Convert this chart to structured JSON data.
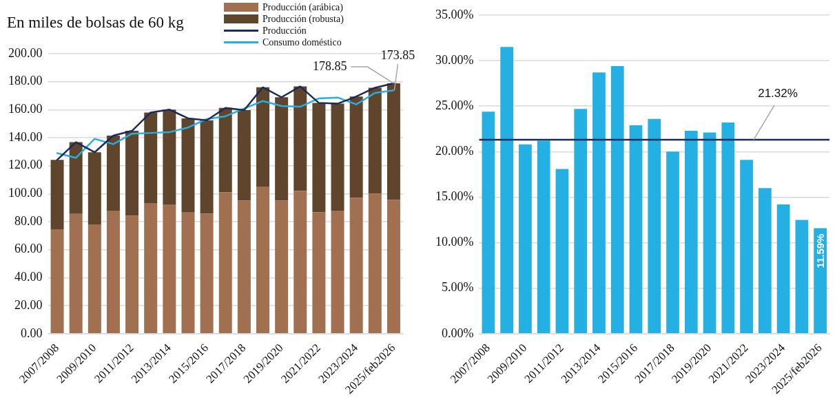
{
  "chart_data": [
    {
      "type": "bar",
      "title": "En miles de bolsas de 60 kg",
      "stacked": true,
      "grid": "y",
      "legend": "top",
      "marker": "none",
      "line_style": "solid",
      "categories": [
        "2007/2008",
        null,
        "2009/2010",
        null,
        "2011/2012",
        null,
        "2013/2014",
        null,
        "2015/2016",
        null,
        "2017/2018",
        null,
        "2019/2020",
        null,
        "2021/2022",
        null,
        "2023/2024",
        null,
        "2025/feb2026"
      ],
      "series": [
        {
          "name": "Producción (arábica)",
          "color": "#a07050",
          "values": [
            74.6,
            85.6,
            77.7,
            87.9,
            84.3,
            92.9,
            92.3,
            86.5,
            85.8,
            100.9,
            95.0,
            104.7,
            95.0,
            102.1,
            86.8,
            87.9,
            97.0,
            100.1,
            95.5
          ]
        },
        {
          "name": "Producción (robusta)",
          "color": "#5f452b",
          "values": [
            49.6,
            51.2,
            51.9,
            53.6,
            60.6,
            65.1,
            67.8,
            67.3,
            66.6,
            60.4,
            64.7,
            71.3,
            73.9,
            74.5,
            78.0,
            76.4,
            72.4,
            75.6,
            83.4
          ]
        },
        {
          "name": "Producción",
          "type": "line",
          "color": "#1b2a5a",
          "values": [
            124.2,
            136.8,
            129.6,
            141.5,
            144.9,
            158.0,
            160.1,
            153.8,
            152.4,
            161.3,
            159.7,
            176.0,
            168.9,
            176.6,
            164.8,
            164.3,
            169.4,
            175.7,
            178.85
          ]
        },
        {
          "name": "Consumo doméstico",
          "type": "line",
          "color": "#27aee0",
          "values": [
            129.0,
            125.6,
            139.2,
            135.4,
            142.9,
            143.4,
            143.9,
            147.3,
            153.3,
            155.3,
            160.9,
            166.2,
            162.6,
            162.1,
            168.1,
            168.7,
            163.8,
            172.0,
            173.85
          ]
        }
      ],
      "ylim": [
        0,
        200
      ],
      "yticks": [
        {
          "value": 0,
          "label": "0.00"
        },
        {
          "value": 20,
          "label": "20.00"
        },
        {
          "value": 40,
          "label": "40.00"
        },
        {
          "value": 60,
          "label": "60.00"
        },
        {
          "value": 80,
          "label": "80.00"
        },
        {
          "value": 100,
          "label": "100.00"
        },
        {
          "value": 120,
          "label": "120.00"
        },
        {
          "value": 140,
          "label": "140.00"
        },
        {
          "value": 160,
          "label": "160.00"
        },
        {
          "value": 180,
          "label": "180.00"
        },
        {
          "value": 200,
          "label": "200.00"
        }
      ],
      "annotations": [
        {
          "text": "178.85",
          "x": "2025/feb2026",
          "y": 178.85
        },
        {
          "text": "173.85",
          "x": "2025/feb2026",
          "y": 173.85
        }
      ]
    },
    {
      "type": "bar",
      "grid": "y",
      "color": "#25b0e3",
      "categories": [
        "2007/2008",
        null,
        "2009/2010",
        null,
        "2011/2012",
        null,
        "2013/2014",
        null,
        "2015/2016",
        null,
        "2017/2018",
        null,
        "2019/2020",
        null,
        "2021/2022",
        null,
        "2023/2024",
        null,
        "2025/feb2026"
      ],
      "values": [
        24.4,
        31.5,
        20.8,
        21.2,
        18.1,
        24.7,
        28.7,
        29.4,
        22.9,
        23.6,
        20.0,
        22.3,
        22.1,
        23.2,
        19.1,
        16.0,
        14.2,
        12.5,
        11.59
      ],
      "value_labels": [
        null,
        null,
        null,
        null,
        null,
        null,
        null,
        null,
        null,
        null,
        null,
        null,
        null,
        null,
        null,
        null,
        null,
        null,
        "11.59%"
      ],
      "ylim": [
        0,
        35
      ],
      "yticks": [
        {
          "value": 0,
          "label": "0.00%"
        },
        {
          "value": 5,
          "label": "5.00%"
        },
        {
          "value": 10,
          "label": "10.00%"
        },
        {
          "value": 15,
          "label": "15.00%"
        },
        {
          "value": 20,
          "label": "20.00%"
        },
        {
          "value": 25,
          "label": "25.00%"
        },
        {
          "value": 30,
          "label": "30.00%"
        },
        {
          "value": 35,
          "label": "35.00%"
        }
      ],
      "ref_lines": [
        {
          "axis": "y",
          "value": 21.32,
          "label": "21.32%",
          "color": "#1b2a5a"
        }
      ]
    }
  ]
}
